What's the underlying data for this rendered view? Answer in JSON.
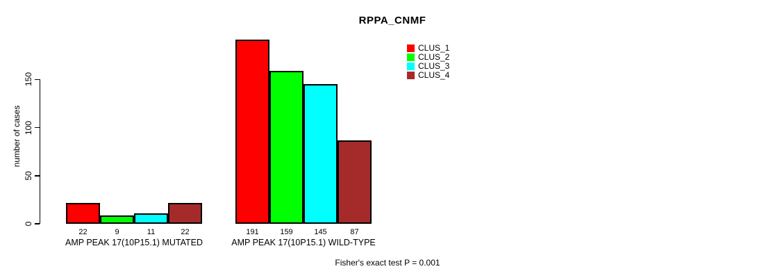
{
  "title": "RPPA_CNMF",
  "footer": {
    "caption": "Fisher's exact test P = 0.001"
  },
  "chart_data": {
    "type": "bar",
    "title": "RPPA_CNMF",
    "xlabel": "",
    "ylabel": "number of cases",
    "yticks": [
      0,
      50,
      100,
      150
    ],
    "ylim": [
      0,
      191
    ],
    "grid": false,
    "legend_position": "top-right",
    "background_color": "#ffffff",
    "bar_border_color": "#000000",
    "groups": [
      {
        "label": "AMP PEAK 17(10P15.1) MUTATED",
        "values": [
          22,
          9,
          11,
          22
        ]
      },
      {
        "label": "AMP PEAK 17(10P15.1) WILD-TYPE",
        "values": [
          191,
          159,
          145,
          87
        ]
      }
    ],
    "series": [
      {
        "name": "CLUS_1",
        "color": "#ff0000"
      },
      {
        "name": "CLUS_2",
        "color": "#00ff00"
      },
      {
        "name": "CLUS_3",
        "color": "#00ffff"
      },
      {
        "name": "CLUS_4",
        "color": "#a52a2a"
      }
    ]
  }
}
